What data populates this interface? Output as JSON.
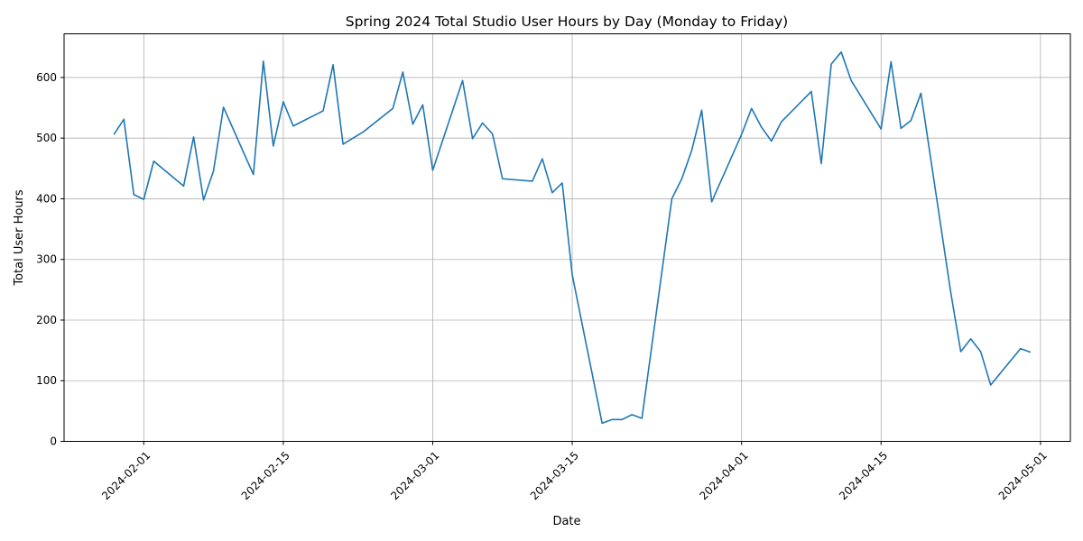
{
  "chart_data": {
    "type": "line",
    "title": "Spring 2024 Total Studio User Hours by Day (Monday to Friday)",
    "xlabel": "Date",
    "ylabel": "Total User Hours",
    "grid": true,
    "xlim": [
      "2024-01-24",
      "2024-05-04"
    ],
    "ylim": [
      0,
      672
    ],
    "x_ticks": [
      "2024-02-01",
      "2024-02-15",
      "2024-03-01",
      "2024-03-15",
      "2024-04-01",
      "2024-04-15",
      "2024-05-01"
    ],
    "y_ticks": [
      0,
      100,
      200,
      300,
      400,
      500,
      600
    ],
    "line_color": "#1f77b4",
    "series": [
      {
        "x": [
          "2024-01-29",
          "2024-01-30",
          "2024-01-31",
          "2024-02-01",
          "2024-02-02",
          "2024-02-05",
          "2024-02-06",
          "2024-02-07",
          "2024-02-08",
          "2024-02-09",
          "2024-02-12",
          "2024-02-13",
          "2024-02-14",
          "2024-02-15",
          "2024-02-16",
          "2024-02-19",
          "2024-02-20",
          "2024-02-21",
          "2024-02-23",
          "2024-02-26",
          "2024-02-27",
          "2024-02-28",
          "2024-02-29",
          "2024-03-01",
          "2024-03-04",
          "2024-03-05",
          "2024-03-06",
          "2024-03-07",
          "2024-03-08",
          "2024-03-11",
          "2024-03-12",
          "2024-03-13",
          "2024-03-14",
          "2024-03-15",
          "2024-03-18",
          "2024-03-19",
          "2024-03-20",
          "2024-03-21",
          "2024-03-22",
          "2024-03-25",
          "2024-03-26",
          "2024-03-27",
          "2024-03-28",
          "2024-03-29",
          "2024-04-01",
          "2024-04-02",
          "2024-04-03",
          "2024-04-04",
          "2024-04-05",
          "2024-04-08",
          "2024-04-09",
          "2024-04-10",
          "2024-04-11",
          "2024-04-12",
          "2024-04-15",
          "2024-04-16",
          "2024-04-17",
          "2024-04-18",
          "2024-04-19",
          "2024-04-22",
          "2024-04-23",
          "2024-04-24",
          "2024-04-25",
          "2024-04-26",
          "2024-04-29",
          "2024-04-30"
        ],
        "y": [
          506,
          531,
          407,
          399,
          462,
          421,
          502,
          398,
          446,
          551,
          440,
          627,
          487,
          560,
          520,
          545,
          621,
          490,
          510,
          549,
          609,
          523,
          555,
          447,
          595,
          499,
          525,
          507,
          433,
          429,
          466,
          410,
          426,
          275,
          30,
          36,
          36,
          44,
          38,
          400,
          433,
          480,
          546,
          395,
          506,
          549,
          518,
          495,
          527,
          577,
          458,
          622,
          642,
          595,
          515,
          626,
          516,
          529,
          574,
          245,
          148,
          169,
          148,
          93,
          153,
          147
        ]
      }
    ]
  }
}
